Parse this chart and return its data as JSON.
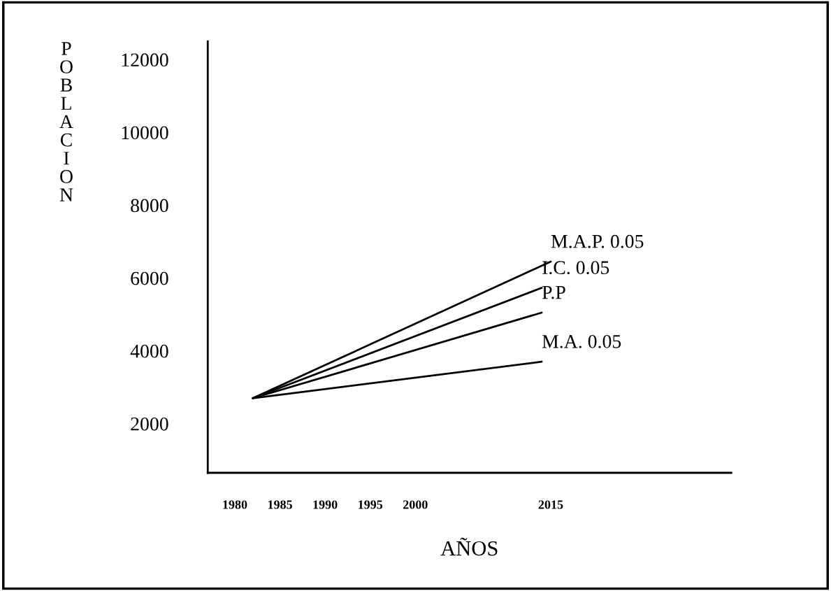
{
  "chart_data": {
    "type": "line",
    "xlabel": "AÑOS",
    "ylabel": "POBLACION",
    "xlim": [
      1977,
      2035
    ],
    "xticks": [
      1980,
      1985,
      1990,
      1995,
      2000,
      2015
    ],
    "ylim": [
      650,
      12500
    ],
    "yticks": [
      2000,
      4000,
      6000,
      8000,
      10000,
      12000
    ],
    "grid": false,
    "legend": false,
    "marker": "none",
    "line_style": "solid",
    "series": [
      {
        "name": "M.A.P. 0.05",
        "color": "#000000",
        "x": [
          1982,
          2015
        ],
        "values": [
          2700,
          6450
        ]
      },
      {
        "name": "I.C. 0.05",
        "color": "#000000",
        "x": [
          1982,
          2014
        ],
        "values": [
          2700,
          5730
        ]
      },
      {
        "name": "P.P",
        "color": "#000000",
        "x": [
          1982,
          2014
        ],
        "values": [
          2700,
          5050
        ]
      },
      {
        "name": "M.A. 0.05",
        "color": "#000000",
        "x": [
          1982,
          2014
        ],
        "values": [
          2700,
          3700
        ]
      }
    ]
  }
}
